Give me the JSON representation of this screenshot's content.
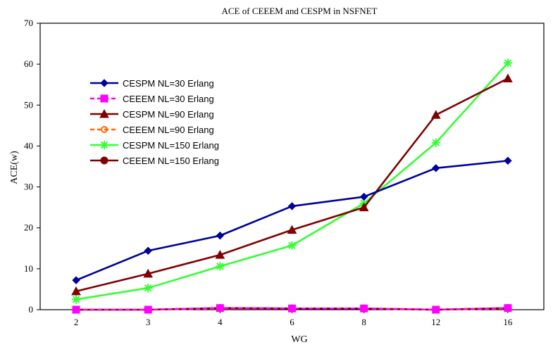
{
  "chart_data": {
    "type": "line",
    "title": "ACE of CEEEM and CESPM in NSFNET",
    "xlabel": "WG",
    "ylabel": "ACE(w)",
    "categories": [
      "2",
      "3",
      "4",
      "6",
      "8",
      "12",
      "16"
    ],
    "ylim": [
      0,
      70
    ],
    "yticks": [
      0,
      10,
      20,
      30,
      40,
      50,
      60,
      70
    ],
    "grid": false,
    "legend_position": "upper-left",
    "series": [
      {
        "name": "CESPM NL=30 Erlang",
        "color": "#000099",
        "marker": "diamond",
        "dashed": false,
        "values": [
          7.2,
          14.4,
          18.1,
          25.3,
          27.6,
          34.6,
          36.4
        ]
      },
      {
        "name": "CEEEM NL=30 Erlang",
        "color": "#ff00ff",
        "marker": "square",
        "dashed": true,
        "values": [
          0.0,
          0.0,
          0.4,
          0.3,
          0.3,
          0.0,
          0.4
        ]
      },
      {
        "name": "CESPM NL=90 Erlang",
        "color": "#800000",
        "marker": "triangle",
        "dashed": false,
        "values": [
          4.5,
          8.8,
          13.4,
          19.5,
          25.0,
          47.6,
          56.5
        ]
      },
      {
        "name": "CEEEM NL=90 Erlang",
        "color": "#ff6600",
        "marker": "circle-open",
        "dashed": true,
        "values": [
          0.0,
          0.0,
          0.3,
          0.3,
          0.3,
          0.0,
          0.3
        ]
      },
      {
        "name": "CESPM NL=150 Erlang",
        "color": "#33ff33",
        "marker": "star",
        "dashed": false,
        "values": [
          2.5,
          5.3,
          10.6,
          15.7,
          26.0,
          40.8,
          60.3
        ]
      },
      {
        "name": "CEEEM NL=150 Erlang",
        "color": "#800000",
        "marker": "circle",
        "dashed": false,
        "values": [
          0.0,
          0.0,
          0.4,
          0.3,
          0.3,
          0.0,
          0.4
        ]
      }
    ]
  }
}
